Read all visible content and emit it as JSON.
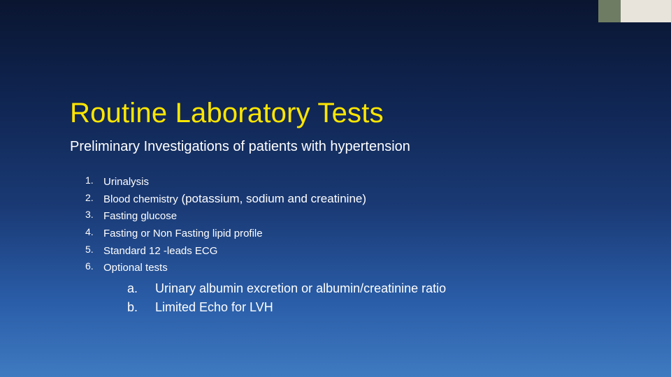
{
  "slide": {
    "title": "Routine Laboratory Tests",
    "subtitle": "Preliminary Investigations of patients with hypertension",
    "title_color": "#ffe600",
    "items": [
      {
        "label": "Urinalysis",
        "detail": ""
      },
      {
        "label": "Blood chemistry",
        "detail": " (potassium, sodium and creatinine)"
      },
      {
        "label": "Fasting glucose",
        "detail": ""
      },
      {
        "label": "Fasting or Non Fasting lipid profile",
        "detail": ""
      },
      {
        "label": "Standard 12 -leads ECG",
        "detail": ""
      },
      {
        "label": "Optional tests",
        "detail": ""
      }
    ],
    "sub_items": [
      "Urinary albumin excretion or albumin/creatinine ratio",
      "Limited Echo for LVH"
    ]
  },
  "style": {
    "background_gradient": [
      "#0a1530",
      "#0f2450",
      "#1a3a75",
      "#2a5da8",
      "#3f7ac0"
    ],
    "accent_dark": "#6e7c63",
    "accent_light": "#e8e4dc",
    "text_color": "#ffffff",
    "title_fontsize": 40,
    "subtitle_fontsize": 20,
    "list_fontsize": 16,
    "sublist_fontsize": 18
  }
}
